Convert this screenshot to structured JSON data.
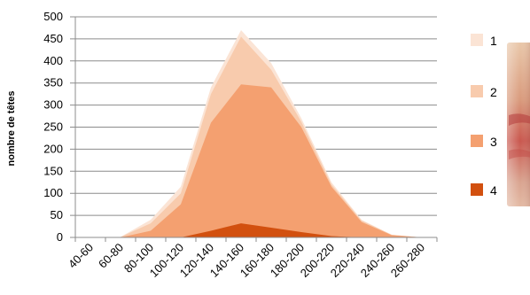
{
  "chart_data": {
    "type": "area",
    "xlabel": "",
    "ylabel": "nombre de têtes",
    "categories": [
      "40-60",
      "60-80",
      "80-100",
      "100-120",
      "120-140",
      "140-160",
      "160-180",
      "180-200",
      "200-220",
      "220-240",
      "240-260",
      "260-280"
    ],
    "ylim": [
      0,
      500
    ],
    "yticks": [
      0,
      50,
      100,
      150,
      200,
      250,
      300,
      350,
      400,
      450,
      500
    ],
    "grid": true,
    "legend_position": "right",
    "series": [
      {
        "name": "1",
        "color": "#fbe4d5",
        "values": [
          0,
          1,
          40,
          115,
          340,
          470,
          395,
          270,
          125,
          40,
          6,
          0
        ]
      },
      {
        "name": "2",
        "color": "#f8cbad",
        "values": [
          0,
          1,
          32,
          100,
          325,
          455,
          380,
          262,
          120,
          38,
          6,
          0
        ]
      },
      {
        "name": "3",
        "color": "#f4a070",
        "values": [
          0,
          0,
          15,
          75,
          260,
          347,
          340,
          250,
          115,
          35,
          5,
          0
        ]
      },
      {
        "name": "4",
        "color": "#d2500f",
        "values": [
          0,
          0,
          0,
          0,
          15,
          32,
          22,
          12,
          3,
          0,
          0,
          0
        ]
      }
    ]
  }
}
